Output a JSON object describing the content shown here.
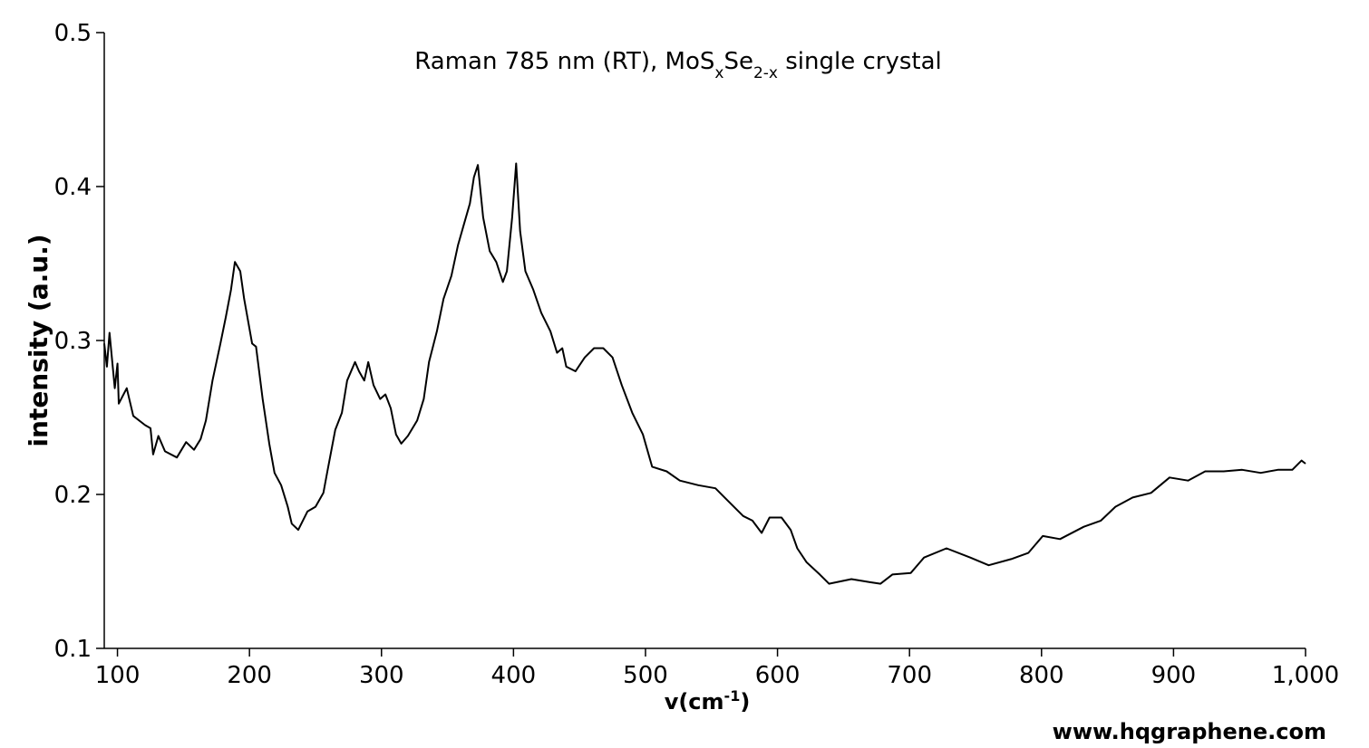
{
  "chart_data": {
    "type": "line",
    "title_parts": [
      {
        "text": "Raman 785 nm (RT), MoS"
      },
      {
        "text": "x",
        "sub": true
      },
      {
        "text": "Se"
      },
      {
        "text": "2-x",
        "sub": true
      },
      {
        "text": " single crystal"
      }
    ],
    "xlabel_parts": [
      {
        "text": "v(cm"
      },
      {
        "text": "-1",
        "sup": true
      },
      {
        "text": ")"
      }
    ],
    "ylabel": "intensity (a.u.)",
    "watermark": "www.hqgraphene.com",
    "xlim": [
      90,
      1000
    ],
    "ylim": [
      0.1,
      0.5
    ],
    "xticks": [
      100,
      200,
      300,
      400,
      500,
      600,
      700,
      800,
      900,
      {
        "value": 1000,
        "label": "1,000"
      }
    ],
    "yticks": [
      0.1,
      0.2,
      0.3,
      0.4,
      0.5
    ],
    "grid": false,
    "x": [
      90,
      92,
      94,
      98,
      100,
      101,
      107,
      112,
      121,
      125,
      127,
      131,
      136,
      145,
      152,
      158,
      163,
      167,
      172,
      178,
      182,
      186,
      189,
      193,
      196,
      202,
      205,
      210,
      215,
      219,
      224,
      229,
      232,
      237,
      244,
      250,
      256,
      259,
      265,
      270,
      274,
      280,
      283,
      287,
      290,
      294,
      299,
      303,
      307,
      311,
      315,
      320,
      327,
      332,
      336,
      342,
      347,
      353,
      358,
      362,
      367,
      370,
      373,
      377,
      382,
      387,
      392,
      395,
      399,
      402,
      405,
      409,
      415,
      421,
      428,
      433,
      437,
      440,
      447,
      454,
      461,
      468,
      475,
      482,
      490,
      498,
      505,
      516,
      526,
      540,
      553,
      560,
      574,
      581,
      588,
      594,
      603,
      610,
      615,
      622,
      632,
      639,
      656,
      670,
      678,
      687,
      701,
      711,
      728,
      746,
      760,
      777,
      790,
      801,
      814,
      832,
      845,
      856,
      869,
      883,
      897,
      911,
      924,
      938,
      952,
      966,
      979,
      990,
      997,
      1000
    ],
    "series": [
      {
        "color": "#000000",
        "values": [
          0.298,
          0.283,
          0.305,
          0.269,
          0.285,
          0.259,
          0.269,
          0.251,
          0.245,
          0.243,
          0.226,
          0.238,
          0.228,
          0.224,
          0.234,
          0.229,
          0.236,
          0.248,
          0.274,
          0.298,
          0.315,
          0.333,
          0.351,
          0.345,
          0.327,
          0.298,
          0.296,
          0.262,
          0.233,
          0.214,
          0.206,
          0.192,
          0.181,
          0.177,
          0.189,
          0.192,
          0.201,
          0.215,
          0.242,
          0.253,
          0.274,
          0.286,
          0.28,
          0.274,
          0.286,
          0.271,
          0.262,
          0.265,
          0.256,
          0.239,
          0.233,
          0.238,
          0.248,
          0.262,
          0.286,
          0.306,
          0.327,
          0.342,
          0.362,
          0.374,
          0.389,
          0.406,
          0.414,
          0.38,
          0.358,
          0.351,
          0.338,
          0.345,
          0.38,
          0.415,
          0.371,
          0.345,
          0.333,
          0.318,
          0.306,
          0.292,
          0.295,
          0.283,
          0.28,
          0.289,
          0.295,
          0.295,
          0.289,
          0.271,
          0.253,
          0.239,
          0.218,
          0.215,
          0.209,
          0.206,
          0.204,
          0.198,
          0.186,
          0.183,
          0.175,
          0.185,
          0.185,
          0.177,
          0.165,
          0.156,
          0.148,
          0.142,
          0.145,
          0.143,
          0.142,
          0.148,
          0.149,
          0.159,
          0.165,
          0.159,
          0.154,
          0.158,
          0.162,
          0.173,
          0.171,
          0.179,
          0.183,
          0.192,
          0.198,
          0.201,
          0.211,
          0.209,
          0.215,
          0.215,
          0.216,
          0.214,
          0.216,
          0.216,
          0.222,
          0.22
        ]
      }
    ]
  }
}
